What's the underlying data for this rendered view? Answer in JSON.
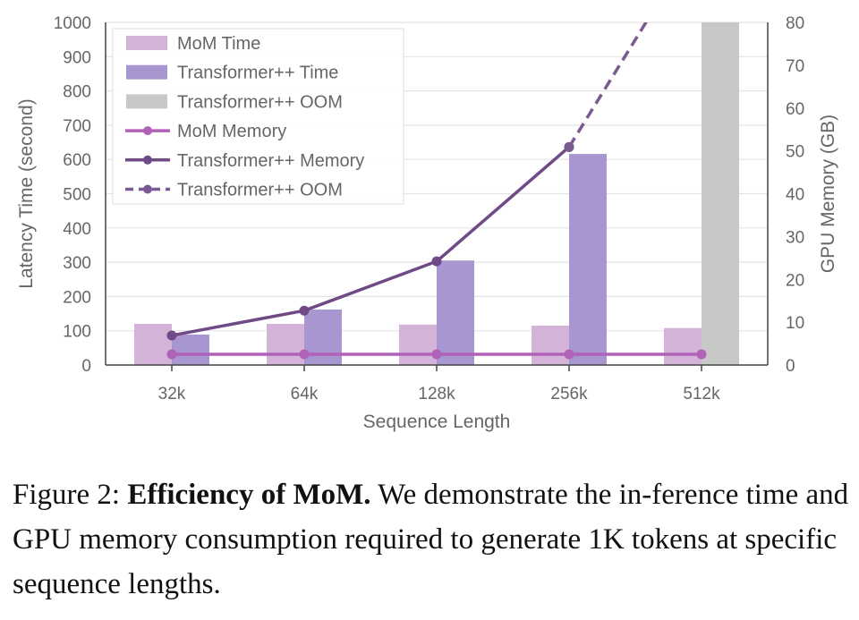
{
  "chart_data": {
    "type": "bar+line",
    "title": "",
    "xlabel": "Sequence Length",
    "ylabel": "Latency Time (second)",
    "y2label": "GPU Memory (GB)",
    "categories": [
      "32k",
      "64k",
      "128k",
      "256k",
      "512k"
    ],
    "ylim": [
      0,
      1000
    ],
    "yticks": [
      0,
      100,
      200,
      300,
      400,
      500,
      600,
      700,
      800,
      900,
      1000
    ],
    "y2lim": [
      0,
      80
    ],
    "y2ticks": [
      0,
      10,
      20,
      30,
      40,
      50,
      60,
      70,
      80
    ],
    "grid": "horizontal",
    "legend_placement": "top-left",
    "bar_series": [
      {
        "name": "MoM Time",
        "color": "#d4b3d8",
        "values": [
          120,
          120,
          118,
          115,
          108
        ]
      },
      {
        "name": "Transformer++ Time",
        "color": "#a896d1",
        "values": [
          89,
          162,
          305,
          616,
          null
        ]
      },
      {
        "name": "Transformer++ OOM",
        "color": "#c8c8c8",
        "values": [
          null,
          null,
          null,
          null,
          1000
        ]
      }
    ],
    "line_series": [
      {
        "name": "MoM Memory",
        "color": "#b061b8",
        "axis": "right",
        "style": "solid",
        "values": [
          2.5,
          2.5,
          2.5,
          2.5,
          2.5
        ]
      },
      {
        "name": "Transformer++ Memory",
        "color": "#6f4a87",
        "axis": "right",
        "style": "solid",
        "values": [
          6.9,
          12.7,
          24.2,
          50.9,
          null
        ]
      },
      {
        "name": "Transformer++ OOM",
        "color": "#7a5a92",
        "axis": "right",
        "style": "dashed",
        "values": [
          null,
          null,
          null,
          50.9,
          101
        ]
      }
    ]
  },
  "caption": {
    "label": "Figure 2:",
    "bold": "Efficiency of MoM.",
    "text": "We demonstrate the in-ference time and GPU memory consumption required to generate 1K tokens at specific sequence lengths."
  }
}
